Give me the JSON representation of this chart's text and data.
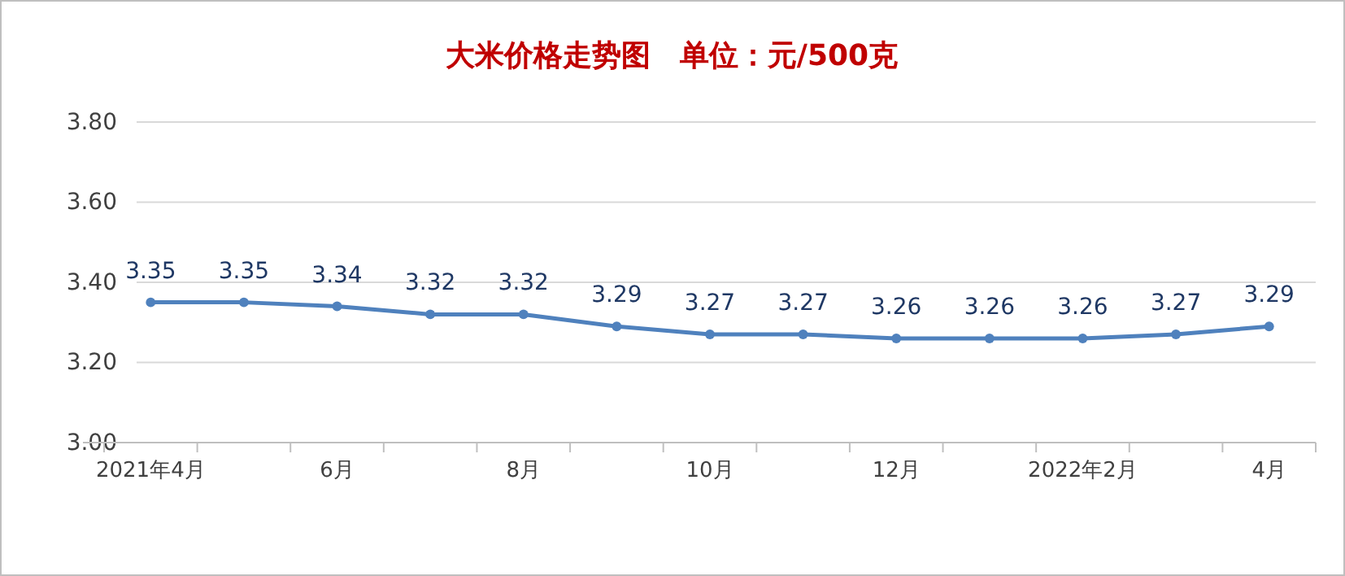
{
  "chart_data": {
    "type": "line",
    "title": "大米价格走势图　单位：元/500克",
    "categories": [
      "2021年4月",
      null,
      "6月",
      null,
      "8月",
      null,
      "10月",
      null,
      "12月",
      null,
      "2022年2月",
      null,
      "4月"
    ],
    "series": [
      {
        "color": "#4f81bd",
        "values": [
          3.35,
          3.35,
          3.34,
          3.32,
          3.32,
          3.29,
          3.27,
          3.27,
          3.26,
          3.26,
          3.26,
          3.27,
          3.29
        ]
      }
    ],
    "ylim": [
      3.0,
      3.8
    ],
    "yticks": [
      {
        "value": 3.0,
        "label": "3.00"
      },
      {
        "value": 3.2,
        "label": "3.20"
      },
      {
        "value": 3.4,
        "label": "3.40"
      },
      {
        "value": 3.6,
        "label": "3.60"
      },
      {
        "value": 3.8,
        "label": "3.80"
      }
    ],
    "grid": "y",
    "marker": "circle",
    "line_style": "solid",
    "data_labels": true
  }
}
